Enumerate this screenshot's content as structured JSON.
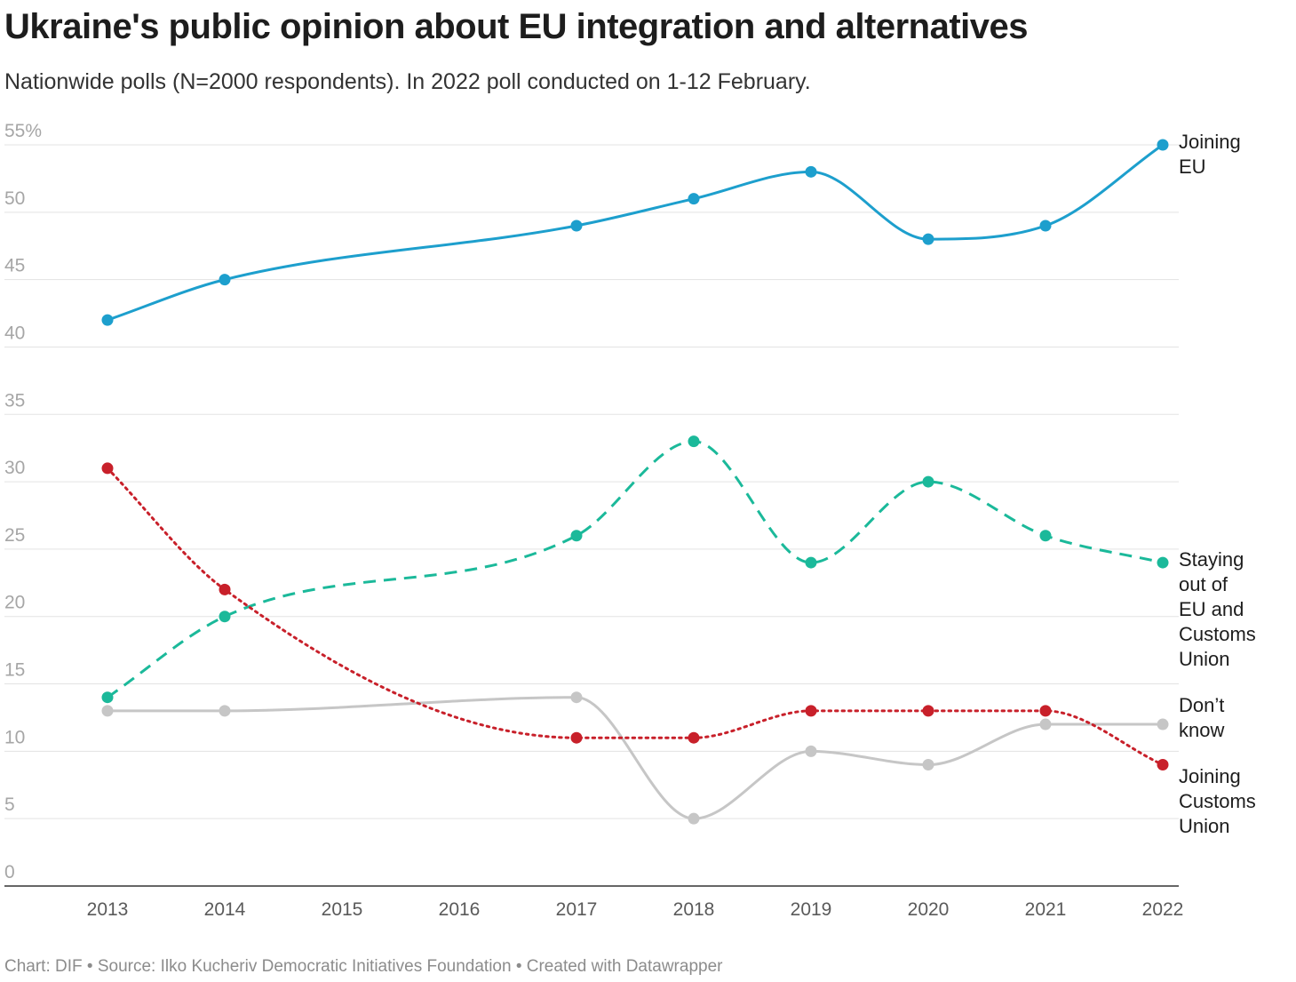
{
  "title": "Ukraine's public opinion about EU integration and alternatives",
  "subtitle": "Nationwide polls (N=2000 respondents). In 2022 poll conducted on 1-12 February.",
  "footer": "Chart: DIF • Source: Ilko Kucheriv Democratic Initiatives Foundation • Created with Datawrapper",
  "chart_data": {
    "type": "line",
    "x": [
      2013,
      2014,
      2015,
      2016,
      2017,
      2018,
      2019,
      2020,
      2021,
      2022
    ],
    "x_tick_labels": [
      "2013",
      "2014",
      "2015",
      "2016",
      "2017",
      "2018",
      "2019",
      "2020",
      "2021",
      "2022"
    ],
    "xlim": [
      2013,
      2022
    ],
    "ylim": [
      0,
      55
    ],
    "y_ticks": [
      0,
      5,
      10,
      15,
      20,
      25,
      30,
      35,
      40,
      45,
      50,
      55
    ],
    "y_tick_labels": [
      "0",
      "5",
      "10",
      "15",
      "20",
      "25",
      "30",
      "35",
      "40",
      "45",
      "50",
      "55%"
    ],
    "grid": true,
    "series": [
      {
        "name": "Joining EU",
        "label_lines": [
          "Joining",
          "EU"
        ],
        "color": "#1d9fcd",
        "style": "solid",
        "points": [
          [
            2013,
            42
          ],
          [
            2014,
            45
          ],
          [
            2017,
            49
          ],
          [
            2018,
            51
          ],
          [
            2019,
            53
          ],
          [
            2020,
            48
          ],
          [
            2021,
            49
          ],
          [
            2022,
            55
          ]
        ]
      },
      {
        "name": "Staying out of EU and Customs Union",
        "label_lines": [
          "Staying",
          "out of",
          "EU and",
          "Customs",
          "Union"
        ],
        "color": "#1bb99a",
        "style": "dashed",
        "points": [
          [
            2013,
            14
          ],
          [
            2014,
            20
          ],
          [
            2017,
            26
          ],
          [
            2018,
            33
          ],
          [
            2019,
            24
          ],
          [
            2020,
            30
          ],
          [
            2021,
            26
          ],
          [
            2022,
            24
          ]
        ]
      },
      {
        "name": "Don’t know",
        "label_lines": [
          "Don’t",
          "know"
        ],
        "color": "#c6c6c6",
        "style": "solid",
        "points": [
          [
            2013,
            13
          ],
          [
            2014,
            13
          ],
          [
            2017,
            14
          ],
          [
            2018,
            5
          ],
          [
            2019,
            10
          ],
          [
            2020,
            9
          ],
          [
            2021,
            12
          ],
          [
            2022,
            12
          ]
        ]
      },
      {
        "name": "Joining Customs Union",
        "label_lines": [
          "Joining",
          "Customs",
          "Union"
        ],
        "color": "#c8202a",
        "style": "dotted",
        "points": [
          [
            2013,
            31
          ],
          [
            2014,
            22
          ],
          [
            2017,
            11
          ],
          [
            2018,
            11
          ],
          [
            2019,
            13
          ],
          [
            2020,
            13
          ],
          [
            2021,
            13
          ],
          [
            2022,
            9
          ]
        ]
      }
    ]
  }
}
